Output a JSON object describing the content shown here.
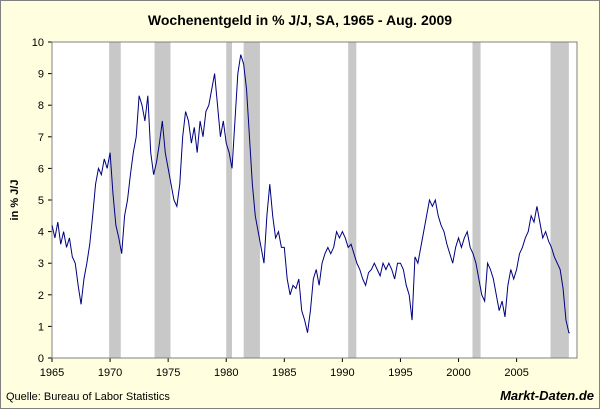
{
  "chart_data": {
    "type": "line",
    "title": "Wochenentgeld in % J/J, SA, 1965 - Aug. 2009",
    "y_label": "in % J/J",
    "source": "Quelle: Bureau of Labor Statistics",
    "brand": "Markt-Daten.de",
    "xlim": [
      1965,
      2010.2
    ],
    "xticks": [
      1965,
      1970,
      1975,
      1980,
      1985,
      1990,
      1995,
      2000,
      2005
    ],
    "ylim": [
      0,
      10
    ],
    "yticks": [
      0,
      1,
      2,
      3,
      4,
      5,
      6,
      7,
      8,
      9,
      10
    ],
    "shaded_color": "#c8c8c8",
    "shaded_periods": [
      [
        1969.92,
        1970.92
      ],
      [
        1973.83,
        1975.2
      ],
      [
        1980.0,
        1980.5
      ],
      [
        1981.5,
        1982.9
      ],
      [
        1990.5,
        1991.2
      ],
      [
        2001.2,
        2001.9
      ],
      [
        2007.92,
        2009.5
      ]
    ],
    "x": [
      1965.0,
      1965.25,
      1965.5,
      1965.75,
      1966.0,
      1966.25,
      1966.5,
      1966.75,
      1967.0,
      1967.25,
      1967.5,
      1967.75,
      1968.0,
      1968.25,
      1968.5,
      1968.75,
      1969.0,
      1969.25,
      1969.5,
      1969.75,
      1970.0,
      1970.25,
      1970.5,
      1970.75,
      1971.0,
      1971.25,
      1971.5,
      1971.75,
      1972.0,
      1972.25,
      1972.5,
      1972.75,
      1973.0,
      1973.25,
      1973.5,
      1973.75,
      1974.0,
      1974.25,
      1974.5,
      1974.75,
      1975.0,
      1975.25,
      1975.5,
      1975.75,
      1976.0,
      1976.25,
      1976.5,
      1976.75,
      1977.0,
      1977.25,
      1977.5,
      1977.75,
      1978.0,
      1978.25,
      1978.5,
      1978.75,
      1979.0,
      1979.25,
      1979.5,
      1979.75,
      1980.0,
      1980.25,
      1980.5,
      1980.75,
      1981.0,
      1981.25,
      1981.5,
      1981.75,
      1982.0,
      1982.25,
      1982.5,
      1982.75,
      1983.0,
      1983.25,
      1983.5,
      1983.75,
      1984.0,
      1984.25,
      1984.5,
      1984.75,
      1985.0,
      1985.25,
      1985.5,
      1985.75,
      1986.0,
      1986.25,
      1986.5,
      1986.75,
      1987.0,
      1987.25,
      1987.5,
      1987.75,
      1988.0,
      1988.25,
      1988.5,
      1988.75,
      1989.0,
      1989.25,
      1989.5,
      1989.75,
      1990.0,
      1990.25,
      1990.5,
      1990.75,
      1991.0,
      1991.25,
      1991.5,
      1991.75,
      1992.0,
      1992.25,
      1992.5,
      1992.75,
      1993.0,
      1993.25,
      1993.5,
      1993.75,
      1994.0,
      1994.25,
      1994.5,
      1994.75,
      1995.0,
      1995.25,
      1995.5,
      1995.75,
      1996.0,
      1996.25,
      1996.5,
      1996.75,
      1997.0,
      1997.25,
      1997.5,
      1997.75,
      1998.0,
      1998.25,
      1998.5,
      1998.75,
      1999.0,
      1999.25,
      1999.5,
      1999.75,
      2000.0,
      2000.25,
      2000.5,
      2000.75,
      2001.0,
      2001.25,
      2001.5,
      2001.75,
      2002.0,
      2002.25,
      2002.5,
      2002.75,
      2003.0,
      2003.25,
      2003.5,
      2003.75,
      2004.0,
      2004.25,
      2004.5,
      2004.75,
      2005.0,
      2005.25,
      2005.5,
      2005.75,
      2006.0,
      2006.25,
      2006.5,
      2006.75,
      2007.0,
      2007.25,
      2007.5,
      2007.75,
      2008.0,
      2008.25,
      2008.5,
      2008.75,
      2009.0,
      2009.25,
      2009.5,
      2009.58
    ],
    "series": [
      {
        "name": "Wochenentgeld",
        "color": "#000080",
        "values": [
          4.2,
          3.8,
          4.3,
          3.6,
          4.0,
          3.5,
          3.8,
          3.2,
          3.0,
          2.3,
          1.7,
          2.5,
          3.0,
          3.6,
          4.5,
          5.5,
          6.0,
          5.8,
          6.3,
          6.0,
          6.5,
          5.2,
          4.2,
          3.8,
          3.3,
          4.5,
          5.0,
          5.8,
          6.5,
          7.0,
          8.3,
          8.0,
          7.5,
          8.3,
          6.5,
          5.8,
          6.2,
          6.8,
          7.5,
          6.5,
          6.0,
          5.5,
          5.0,
          4.8,
          5.5,
          7.0,
          7.8,
          7.5,
          6.8,
          7.3,
          6.5,
          7.5,
          7.0,
          7.8,
          8.0,
          8.5,
          9.0,
          8.0,
          7.0,
          7.5,
          6.8,
          6.5,
          6.0,
          7.5,
          9.0,
          9.6,
          9.3,
          8.5,
          7.0,
          5.5,
          4.5,
          4.0,
          3.5,
          3.0,
          4.5,
          5.5,
          4.5,
          3.8,
          4.0,
          3.5,
          3.5,
          2.5,
          2.0,
          2.3,
          2.2,
          2.5,
          1.5,
          1.2,
          0.8,
          1.5,
          2.5,
          2.8,
          2.3,
          3.0,
          3.3,
          3.5,
          3.3,
          3.5,
          4.0,
          3.8,
          4.0,
          3.8,
          3.5,
          3.6,
          3.3,
          3.0,
          2.8,
          2.5,
          2.3,
          2.7,
          2.8,
          3.0,
          2.8,
          2.6,
          3.0,
          2.8,
          3.0,
          2.8,
          2.5,
          3.0,
          3.0,
          2.8,
          2.3,
          2.0,
          1.2,
          3.2,
          3.0,
          3.5,
          4.0,
          4.5,
          5.0,
          4.8,
          5.0,
          4.5,
          4.2,
          4.0,
          3.6,
          3.3,
          3.0,
          3.5,
          3.8,
          3.5,
          3.8,
          4.0,
          3.5,
          3.3,
          3.0,
          2.5,
          2.0,
          1.8,
          3.0,
          2.8,
          2.5,
          2.0,
          1.5,
          1.8,
          1.3,
          2.3,
          2.8,
          2.5,
          2.8,
          3.3,
          3.5,
          3.8,
          4.0,
          4.5,
          4.3,
          4.8,
          4.3,
          3.8,
          4.0,
          3.7,
          3.5,
          3.2,
          3.0,
          2.8,
          2.2,
          1.2,
          0.8,
          0.8
        ]
      }
    ]
  }
}
